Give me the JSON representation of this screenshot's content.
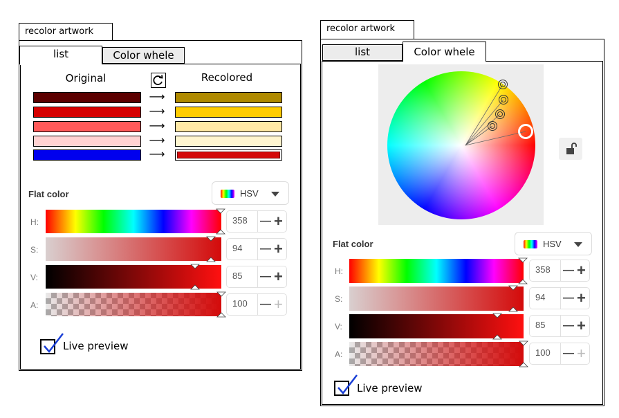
{
  "left_panel": {
    "window_title": "recolor artwork",
    "tabs": [
      {
        "label": "list",
        "active": true
      },
      {
        "label": "Color whele",
        "active": false
      }
    ],
    "original_label": "Original",
    "recolored_label": "Recolored",
    "refresh_icon": "refresh-icon",
    "arrow_glyph": "⟶",
    "color_rows": [
      {
        "original": "#5c0000",
        "recolored": "#b08a00"
      },
      {
        "original": "#d60000",
        "recolored": "#ffcc00"
      },
      {
        "original": "#ff5a5a",
        "recolored": "#ffe9a6"
      },
      {
        "original": "#ffd2d2",
        "recolored": "#fff6d0"
      },
      {
        "original": "#0000ee",
        "recolored": "#d40a0a"
      }
    ],
    "flat_color_label": "Flat color",
    "mode_label": "HSV",
    "channels": [
      {
        "label": "H:",
        "value": "358",
        "plus_enabled": true
      },
      {
        "label": "S:",
        "value": "94",
        "plus_enabled": true
      },
      {
        "label": "V:",
        "value": "85",
        "plus_enabled": true
      },
      {
        "label": "A:",
        "value": "100",
        "plus_enabled": false
      }
    ],
    "live_preview_label": "Live preview",
    "live_preview_checked": true
  },
  "right_panel": {
    "window_title": "recolor artwork",
    "tabs": [
      {
        "label": "list",
        "active": false
      },
      {
        "label": "Color whele",
        "active": true
      }
    ],
    "lock_icon": "unlock-icon",
    "flat_color_label": "Flat color",
    "mode_label": "HSV",
    "channels": [
      {
        "label": "H:",
        "value": "358",
        "plus_enabled": true
      },
      {
        "label": "S:",
        "value": "94",
        "plus_enabled": true
      },
      {
        "label": "V:",
        "value": "85",
        "plus_enabled": true
      },
      {
        "label": "A:",
        "value": "100",
        "plus_enabled": false
      }
    ],
    "live_preview_label": "Live preview",
    "live_preview_checked": true
  },
  "colors": {
    "accent_check": "#1a3fd6",
    "selected_color": "#d40a0a"
  }
}
